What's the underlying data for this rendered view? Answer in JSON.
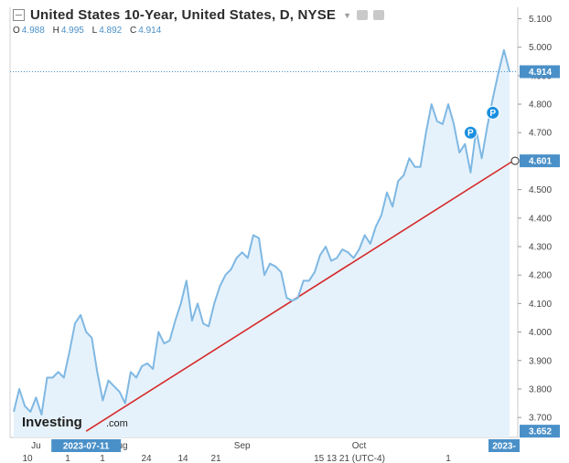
{
  "header": {
    "title": "United States 10-Year, United States, D, NYSE",
    "ohlc": [
      {
        "key": "O",
        "value": "4.988"
      },
      {
        "key": "H",
        "value": "4.995"
      },
      {
        "key": "L",
        "value": "4.892"
      },
      {
        "key": "C",
        "value": "4.914"
      }
    ]
  },
  "logo": {
    "main": "Investing",
    "domain": ".com"
  },
  "colors": {
    "line": "#7fb8e3",
    "area": "#e6f2fb",
    "trendline": "#d42a2a",
    "tag": "#4a90c8",
    "marker": "#1a8fe0"
  },
  "chart_data": {
    "type": "area",
    "ylim": [
      3.63,
      5.14
    ],
    "yticks": [
      "3.700",
      "3.800",
      "3.900",
      "4.000",
      "4.100",
      "4.200",
      "4.300",
      "4.400",
      "4.500",
      "4.600",
      "4.700",
      "4.800",
      "4.900",
      "5.000",
      "5.100"
    ],
    "xticks": [
      {
        "label": "Ju",
        "index": 4
      },
      {
        "label": "Aug",
        "index": 19
      },
      {
        "label": "Sep",
        "index": 41
      },
      {
        "label": "Oct",
        "index": 62
      }
    ],
    "x_start_label": "2023-07-11",
    "x_end_label": "2023-",
    "values": [
      3.72,
      3.8,
      3.74,
      3.72,
      3.77,
      3.71,
      3.84,
      3.84,
      3.86,
      3.84,
      3.93,
      4.03,
      4.06,
      4.0,
      3.98,
      3.86,
      3.76,
      3.83,
      3.81,
      3.79,
      3.75,
      3.86,
      3.84,
      3.88,
      3.89,
      3.87,
      4.0,
      3.96,
      3.97,
      4.04,
      4.1,
      4.18,
      4.04,
      4.1,
      4.03,
      4.02,
      4.1,
      4.16,
      4.2,
      4.22,
      4.26,
      4.28,
      4.26,
      4.34,
      4.33,
      4.2,
      4.24,
      4.23,
      4.21,
      4.12,
      4.11,
      4.12,
      4.18,
      4.18,
      4.21,
      4.27,
      4.3,
      4.25,
      4.26,
      4.29,
      4.28,
      4.26,
      4.29,
      4.34,
      4.31,
      4.37,
      4.41,
      4.49,
      4.44,
      4.53,
      4.55,
      4.61,
      4.58,
      4.58,
      4.7,
      4.8,
      4.74,
      4.73,
      4.8,
      4.73,
      4.63,
      4.66,
      4.56,
      4.71,
      4.61,
      4.72,
      4.82,
      4.91,
      4.99,
      4.914
    ],
    "last_value": "4.914",
    "low_value": "3.652",
    "trendline": {
      "start_index": 13,
      "start_value": 3.652,
      "end_index": 89,
      "end_value": 4.601,
      "label": "4.601"
    },
    "markers": [
      {
        "label": "P",
        "index": 82,
        "value": 4.7
      },
      {
        "label": "P",
        "index": 86,
        "value": 4.77
      }
    ],
    "bottom_ticks": [
      "10",
      "1",
      "1",
      "24",
      "14",
      "21",
      "15 13 21 (UTC-4)",
      "1"
    ]
  }
}
